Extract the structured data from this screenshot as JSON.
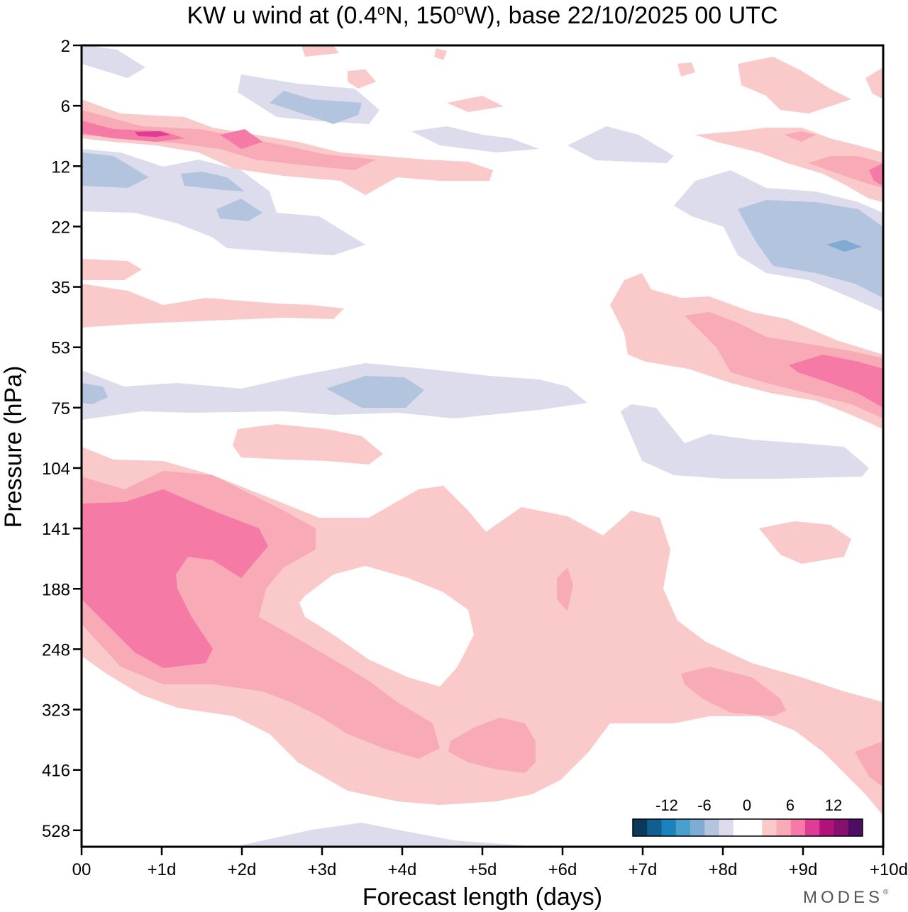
{
  "chart_data": {
    "type": "heatmap",
    "title": "KW u wind at (0.4°N, 150°W),  base 22/10/2025  00 UTC",
    "title_parts": {
      "prefix": "KW u wind at (0.4",
      "deg1": "o",
      "mid": "N, 150",
      "deg2": "o",
      "suffix": "W),  base 22/10/2025  00 UTC"
    },
    "xlabel": "Forecast length (days)",
    "ylabel": "Pressure (hPa)",
    "x_ticks": [
      "00",
      "+1d",
      "+2d",
      "+3d",
      "+4d",
      "+5d",
      "+6d",
      "+7d",
      "+8d",
      "+9d",
      "+10d"
    ],
    "xlim_days": [
      0,
      10
    ],
    "y_ticks": [
      "2",
      "6",
      "12",
      "22",
      "35",
      "53",
      "75",
      "104",
      "141",
      "188",
      "248",
      "323",
      "416",
      "528"
    ],
    "y_scale": "log-pressure",
    "colorbar": {
      "labels": [
        "-12",
        "-6",
        "0",
        "6",
        "12"
      ],
      "colors": [
        "#0a3a5a",
        "#0f5f8f",
        "#1b82bd",
        "#4aa0cc",
        "#80abd2",
        "#b3c4df",
        "#dcdcec",
        "#ffffff",
        "#ffffff",
        "#facaca",
        "#f8aab6",
        "#f57aa5",
        "#de3c96",
        "#b1127a",
        "#85106e",
        "#4e0c62"
      ]
    },
    "brand": "MODES",
    "brand_mark": "®",
    "regions": [
      {
        "level": 1,
        "desc": "weak positive, lower troposphere 100-550 hPa, days 0-10"
      },
      {
        "level": 2,
        "desc": "moderate positive, 140-420 hPa, days 0-4.5"
      },
      {
        "level": 3,
        "desc": "strong positive, 140-250 hPa, days 0-2.3"
      },
      {
        "level": -1,
        "desc": "weak negative, ~75 hPa band, days 0-6.2"
      },
      {
        "level": 3,
        "desc": "strong positive, 53-75 hPa, days 8.9-10"
      },
      {
        "level": -2,
        "desc": "moderate negative, 15-35 hPa, days 8.2-10"
      }
    ]
  }
}
